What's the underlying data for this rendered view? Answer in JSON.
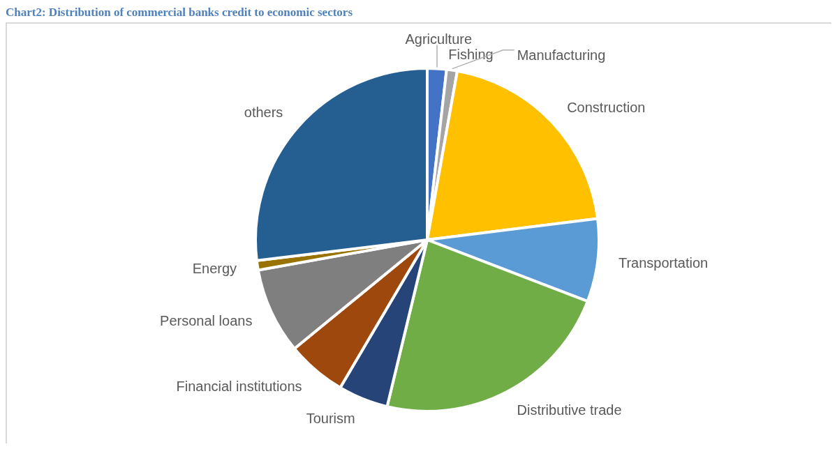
{
  "chart_data": {
    "type": "pie",
    "title": "Chart2: Distribution of commercial banks credit to economic sectors",
    "categories": [
      "Agriculture",
      "Fishing",
      "Manufacturing",
      "Construction",
      "Transportation",
      "Distributive trade",
      "Tourism",
      "Financial institutions",
      "Personal loans",
      "Energy",
      "others"
    ],
    "values": [
      1.8,
      null,
      1.0,
      20.2,
      7.8,
      22.9,
      4.7,
      5.6,
      8.1,
      0.9,
      26.9
    ],
    "colors": [
      "#4472c4",
      "#ed7d31",
      "#a5a5a5",
      "#ffc000",
      "#5b9bd5",
      "#70ad47",
      "#264478",
      "#9e480e",
      "#7f7f7f",
      "#997300",
      "#255e91"
    ]
  }
}
